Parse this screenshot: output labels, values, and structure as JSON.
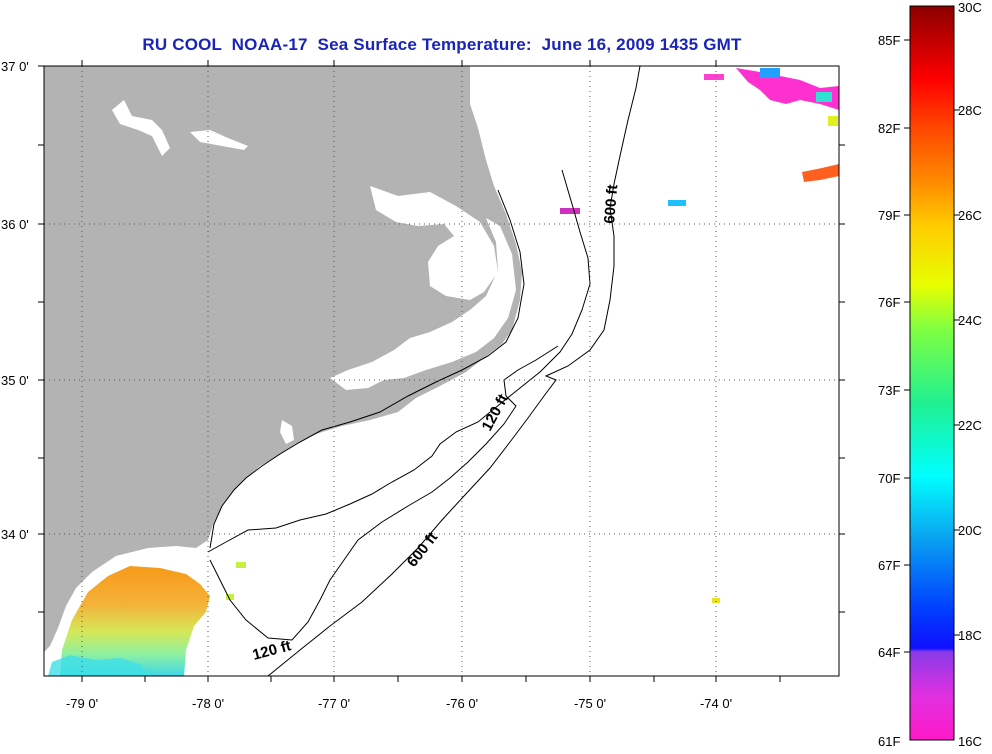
{
  "title": "RU COOL  NOAA-17  Sea Surface Temperature:  June 16, 2009 1435 GMT",
  "lat_labels": [
    "37 0'",
    "36 0'",
    "35 0'",
    "34 0'"
  ],
  "lon_labels": [
    "-79 0'",
    "-78 0'",
    "-77 0'",
    "-76 0'",
    "-75 0'",
    "-74 0'"
  ],
  "contour_labels": {
    "label_600_north": "600 ft",
    "label_120_mid": "120 ft",
    "label_600_south": "600 ft",
    "label_120_south": "120 ft"
  },
  "colorbar": {
    "f_labels": [
      "85F",
      "82F",
      "79F",
      "76F",
      "73F",
      "70F",
      "67F",
      "64F",
      "61F"
    ],
    "c_labels": [
      "30C",
      "28C",
      "26C",
      "24C",
      "22C",
      "20C",
      "18C",
      "16C"
    ]
  },
  "colors": {
    "land": "#b3b3b3",
    "title": "#1a24b8",
    "ocean_nodata": "#ffffff"
  }
}
